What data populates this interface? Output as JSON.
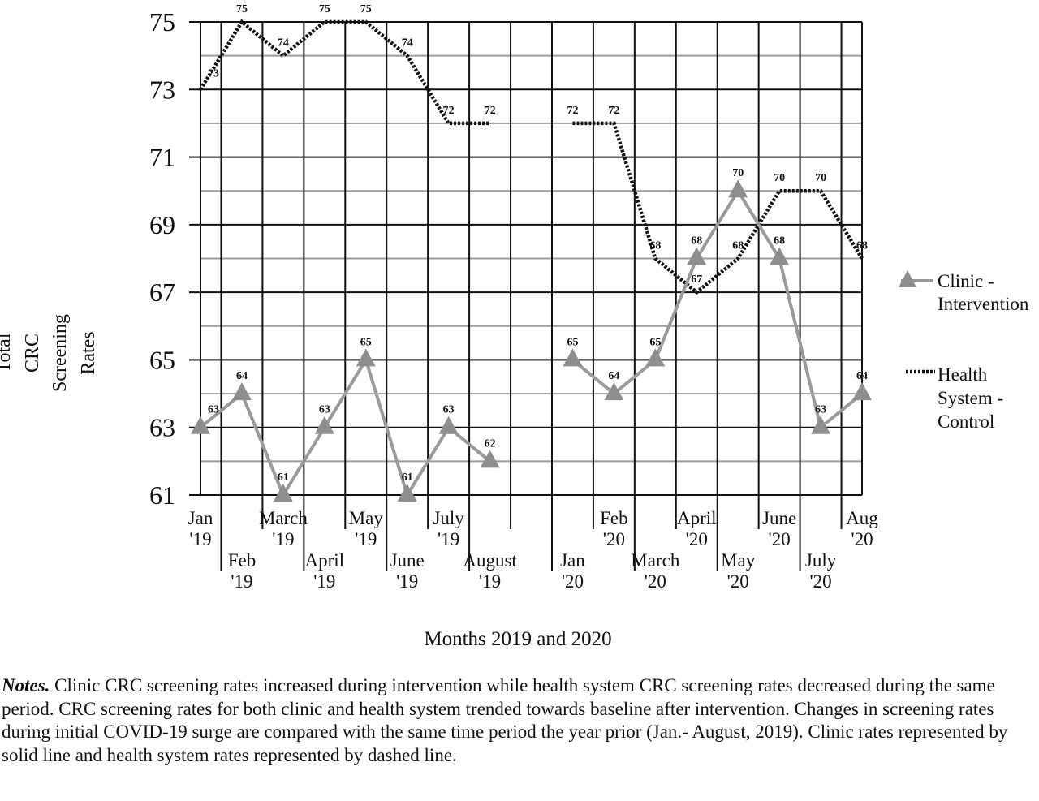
{
  "chart_data": {
    "type": "line",
    "ylabel": [
      "Total",
      "CRC",
      "Screening",
      "Rates"
    ],
    "xlabel": "Months 2019 and 2020",
    "ylim": [
      61,
      75
    ],
    "yticks": [
      61,
      63,
      65,
      67,
      69,
      71,
      73,
      75
    ],
    "grid": true,
    "legend_position": "right",
    "categories": [
      {
        "top": "Jan",
        "bottom": "'19"
      },
      {
        "top": "Feb",
        "bottom": "'19"
      },
      {
        "top": "March",
        "bottom": "'19"
      },
      {
        "top": "April",
        "bottom": "'19"
      },
      {
        "top": "May",
        "bottom": "'19"
      },
      {
        "top": "June",
        "bottom": "'19"
      },
      {
        "top": "July",
        "bottom": "'19"
      },
      {
        "top": "August",
        "bottom": "'19"
      },
      {
        "top": "",
        "bottom": ""
      },
      {
        "top": "Jan",
        "bottom": "'20"
      },
      {
        "top": "Feb",
        "bottom": "'20"
      },
      {
        "top": "March",
        "bottom": "'20"
      },
      {
        "top": "April",
        "bottom": "'20"
      },
      {
        "top": "May",
        "bottom": "'20"
      },
      {
        "top": "June",
        "bottom": "'20"
      },
      {
        "top": "July",
        "bottom": "'20"
      },
      {
        "top": "Aug",
        "bottom": "'20"
      }
    ],
    "series": [
      {
        "name": "Clinic - Intervention",
        "legend_lines": [
          "Clinic -",
          "Intervention"
        ],
        "style": "solid-triangle",
        "color": "#9a9a9a",
        "values": [
          63,
          64,
          61,
          63,
          65,
          61,
          63,
          62,
          null,
          65,
          64,
          65,
          68,
          70,
          68,
          63,
          64
        ]
      },
      {
        "name": "Health System - Control",
        "legend_lines": [
          "Health",
          "System -",
          "Control"
        ],
        "style": "dashed",
        "color": "#111111",
        "values": [
          73,
          75,
          74,
          75,
          75,
          74,
          72,
          72,
          null,
          72,
          72,
          68,
          67,
          68,
          70,
          70,
          68
        ]
      }
    ]
  },
  "notes": {
    "lead": "Notes.",
    "text": " Clinic CRC screening rates increased during intervention while health system CRC screening rates decreased during the same period. CRC screening rates for both clinic and health system trended towards baseline after intervention. Changes in screening rates during initial COVID-19 surge are compared with the same time period the year prior (Jan.- August, 2019). Clinic rates represented by solid line and health system rates represented by dashed line."
  }
}
